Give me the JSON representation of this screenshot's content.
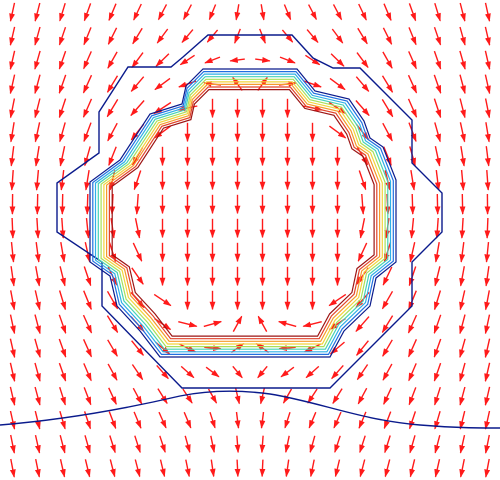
{
  "colors": {
    "arrow": "#ff1a1a",
    "outer_contour": "#0a1a8c",
    "contour_levels": [
      "#0a1a8c",
      "#1f6fe0",
      "#2fb0e6",
      "#46d2b4",
      "#a8e05a",
      "#f2d43c",
      "#f59a2b",
      "#e2432a",
      "#9c1414"
    ]
  },
  "field": {
    "grid_cols": 20,
    "grid_rows": 20,
    "scale": 16
  }
}
